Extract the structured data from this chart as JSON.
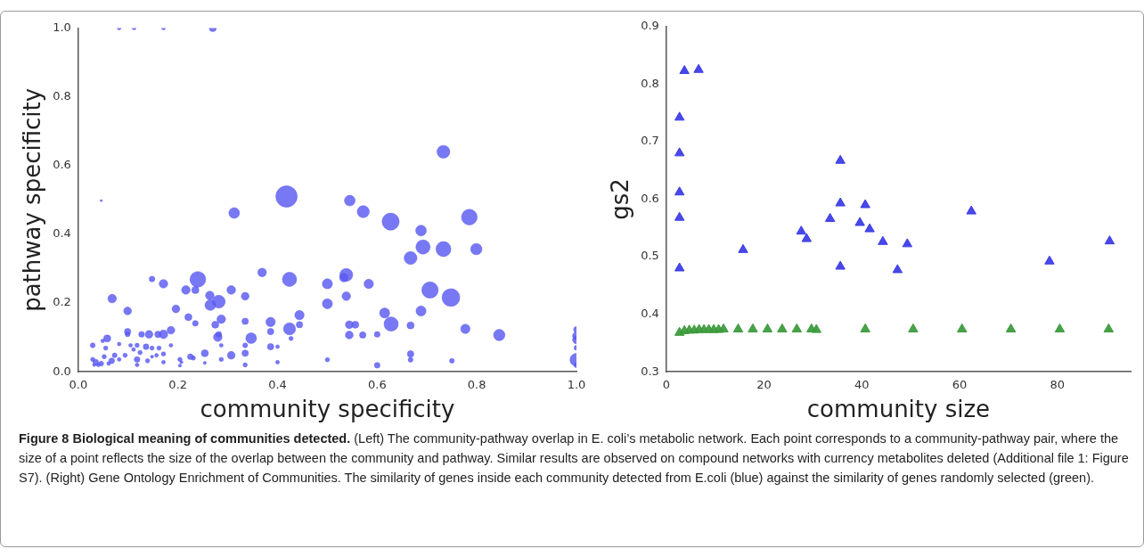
{
  "chart_data": [
    {
      "type": "bubble",
      "xlabel": "community specificity",
      "ylabel": "pathway specificity",
      "xlim": [
        0,
        1
      ],
      "ylim": [
        0,
        1
      ],
      "xticks": [
        {
          "value": 0,
          "label": "0.0"
        },
        0.2,
        0.4,
        0.6,
        0.8,
        {
          "value": 1,
          "label": "1.0"
        }
      ],
      "yticks": [
        {
          "value": 0,
          "label": "0.0"
        },
        0.2,
        0.4,
        0.6,
        0.8,
        {
          "value": 1,
          "label": "1.0"
        }
      ],
      "grid": false,
      "legend": false,
      "marker": "circle",
      "series": [
        {
          "color": "#5a5af2",
          "x": [
            0.082,
            0.112,
            0.171,
            0.27,
            0.046,
            0.313,
            0.418,
            0.148,
            0.171,
            0.24,
            0.216,
            0.235,
            0.264,
            0.282,
            0.265,
            0.307,
            0.335,
            0.369,
            0.424,
            0.068,
            0.099,
            0.196,
            0.221,
            0.235,
            0.287,
            0.275,
            0.335,
            0.386,
            0.386,
            0.424,
            0.347,
            0.28,
            0.386,
            0.4,
            0.307,
            0.254,
            0.335,
            0.335,
            0.335,
            0.287,
            0.287,
            0.254,
            0.225,
            0.204,
            0.204,
            0.186,
            0.186,
            0.171,
            0.16,
            0.142,
            0.127,
            0.099,
            0.099,
            0.058,
            0.029,
            0.049,
            0.082,
            0.105,
            0.118,
            0.136,
            0.148,
            0.162,
            0.171,
            0.171,
            0.157,
            0.139,
            0.118,
            0.118,
            0.094,
            0.082,
            0.073,
            0.067,
            0.055,
            0.052,
            0.046,
            0.035,
            0.029,
            0.04,
            0.032,
            0.061,
            0.111,
            0.124,
            0.148,
            0.282,
            0.207,
            0.4,
            0.427,
            0.231,
            0.733,
            0.545,
            0.572,
            0.627,
            0.785,
            0.688,
            0.692,
            0.733,
            0.799,
            0.667,
            0.538,
            0.533,
            0.5,
            0.583,
            0.538,
            0.5,
            0.706,
            0.748,
            0.688,
            0.615,
            0.444,
            0.444,
            0.628,
            0.544,
            0.556,
            0.667,
            0.777,
            0.845,
            0.544,
            0.571,
            0.6,
            0.5,
            0.6,
            0.667,
            0.667,
            0.75,
            1.0,
            1.0,
            1.0,
            1.0,
            1.0,
            1.0
          ],
          "values": [
            1.0,
            1.0,
            1.0,
            1.0,
            0.498,
            0.462,
            0.51,
            0.27,
            0.256,
            0.269,
            0.238,
            0.238,
            0.222,
            0.204,
            0.194,
            0.238,
            0.22,
            0.289,
            0.269,
            0.213,
            0.177,
            0.183,
            0.159,
            0.141,
            0.153,
            0.137,
            0.147,
            0.145,
            0.117,
            0.125,
            0.098,
            0.101,
            0.073,
            0.073,
            0.048,
            0.054,
            0.054,
            0.077,
            0.02,
            0.077,
            0.036,
            0.026,
            0.044,
            0.036,
            0.018,
            0.121,
            0.077,
            0.109,
            0.109,
            0.109,
            0.109,
            0.117,
            0.109,
            0.097,
            0.077,
            0.09,
            0.081,
            0.077,
            0.077,
            0.073,
            0.069,
            0.069,
            0.052,
            0.028,
            0.048,
            0.032,
            0.036,
            0.02,
            0.048,
            0.036,
            0.048,
            0.032,
            0.069,
            0.044,
            0.024,
            0.028,
            0.036,
            0.02,
            0.02,
            0.024,
            0.065,
            0.056,
            0.044,
            0.109,
            0.028,
            0.028,
            0.097,
            0.04,
            0.64,
            0.498,
            0.466,
            0.437,
            0.45,
            0.411,
            0.363,
            0.357,
            0.357,
            0.331,
            0.282,
            0.274,
            0.256,
            0.256,
            0.22,
            0.198,
            0.238,
            0.216,
            0.177,
            0.171,
            0.165,
            0.137,
            0.139,
            0.137,
            0.137,
            0.135,
            0.125,
            0.107,
            0.107,
            0.107,
            0.109,
            0.035,
            0.019,
            0.052,
            0.035,
            0.032,
            0.123,
            0.105,
            0.093,
            0.07,
            0.035,
            0.019
          ],
          "sizes": [
            0.03,
            0.03,
            0.03,
            0.11,
            0.01,
            0.25,
            1,
            0.07,
            0.16,
            0.54,
            0.16,
            0.11,
            0.16,
            0.36,
            0.25,
            0.16,
            0.13,
            0.16,
            0.44,
            0.16,
            0.13,
            0.13,
            0.11,
            0.07,
            0.16,
            0.11,
            0.09,
            0.19,
            0.09,
            0.32,
            0.25,
            0.16,
            0.09,
            0.03,
            0.13,
            0.11,
            0.09,
            0.05,
            0.04,
            0.03,
            0.04,
            0.02,
            0.07,
            0.04,
            0.02,
            0.13,
            0.03,
            0.16,
            0.09,
            0.13,
            0.07,
            0.09,
            0.05,
            0.11,
            0.05,
            0.03,
            0.03,
            0.03,
            0.04,
            0.07,
            0.04,
            0.04,
            0.04,
            0.03,
            0.03,
            0.04,
            0.07,
            0.03,
            0.04,
            0.03,
            0.05,
            0.07,
            0.04,
            0.04,
            0.05,
            0.07,
            0.04,
            0.03,
            0.02,
            0.03,
            0.03,
            0.04,
            0.02,
            0.07,
            0.02,
            0.03,
            0.04,
            0.04,
            0.36,
            0.25,
            0.32,
            0.64,
            0.54,
            0.25,
            0.44,
            0.49,
            0.28,
            0.36,
            0.36,
            0.16,
            0.22,
            0.19,
            0.16,
            0.22,
            0.59,
            0.69,
            0.22,
            0.22,
            0.19,
            0.09,
            0.44,
            0.13,
            0.11,
            0.11,
            0.19,
            0.28,
            0.13,
            0.09,
            0.07,
            0.04,
            0.07,
            0.09,
            0.05,
            0.05,
            0.07,
            0.13,
            0.13,
            0.05,
            0.36,
            0.05
          ]
        }
      ]
    },
    {
      "type": "scatter",
      "xlabel": "community size",
      "ylabel": "gs2",
      "xlim": [
        0,
        95
      ],
      "ylim": [
        0.3,
        0.9
      ],
      "xticks": [
        0,
        20,
        40,
        60,
        80
      ],
      "yticks": [
        0.3,
        0.4,
        0.5,
        0.6,
        0.7,
        0.8,
        0.9
      ],
      "grid": false,
      "legend": false,
      "marker": "triangle",
      "series": [
        {
          "color": "#3b3be6",
          "x": [
            3.7,
            6.6,
            2.7,
            2.7,
            2.7,
            2.7,
            2.7,
            15.7,
            27.6,
            28.7,
            33.5,
            35.6,
            35.6,
            35.6,
            39.6,
            40.7,
            41.6,
            44.3,
            49.3,
            47.3,
            62.4,
            78.4,
            90.7
          ],
          "values": [
            0.823,
            0.825,
            0.742,
            0.68,
            0.612,
            0.568,
            0.48,
            0.512,
            0.544,
            0.531,
            0.566,
            0.667,
            0.593,
            0.483,
            0.559,
            0.59,
            0.548,
            0.526,
            0.522,
            0.477,
            0.579,
            0.492,
            0.527
          ]
        },
        {
          "color": "#3c9a3c",
          "x": [
            2.7,
            3.7,
            4.7,
            5.7,
            6.7,
            7.7,
            8.7,
            9.7,
            10.7,
            11.7,
            14.7,
            17.7,
            20.7,
            23.7,
            26.7,
            29.7,
            30.7,
            40.7,
            50.5,
            60.5,
            70.5,
            80.5,
            90.5
          ],
          "values": [
            0.368,
            0.371,
            0.372,
            0.372,
            0.373,
            0.373,
            0.373,
            0.373,
            0.373,
            0.374,
            0.374,
            0.374,
            0.374,
            0.374,
            0.374,
            0.374,
            0.373,
            0.374,
            0.374,
            0.374,
            0.374,
            0.374,
            0.374
          ]
        }
      ],
      "annotations": [
        "Figure 8 Biological meaning of communities detected.",
        "(Left) The community-pathway overlap in E. coli’s metabolic network. Each point corresponds to a community-pathway pair, where the size of a point reflects the size of the overlap between the community and pathway. Similar results are observed on compound networks with currency metabolites deleted (Additional file 1: Figure S7). (Right) Gene Ontology Enrichment of Communities. The similarity of genes inside each community detected from E.coli (blue) against the similarity of genes randomly selected (green)."
      ]
    }
  ]
}
